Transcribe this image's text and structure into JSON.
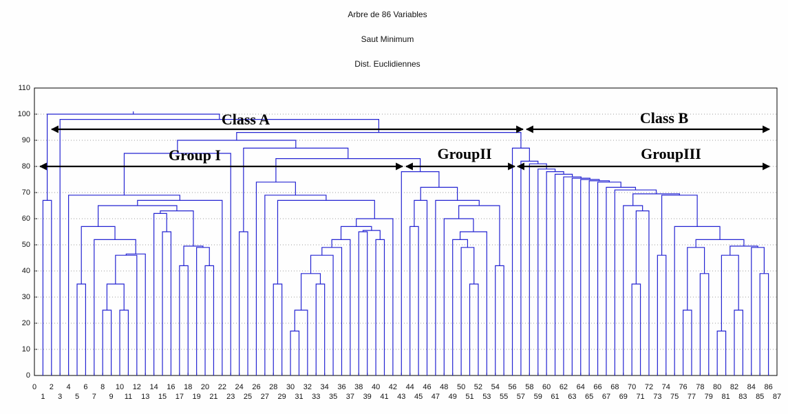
{
  "chart_data": {
    "type": "dendrogram",
    "title": "Arbre de 86 Variables",
    "subtitle": [
      "Saut Minimum",
      "Dist. Euclidiennes"
    ],
    "color": "#2323d2",
    "grid": true,
    "xlim": [
      0,
      87
    ],
    "xticks": [
      0,
      1,
      2,
      3,
      4,
      5,
      6,
      7,
      8,
      9,
      10,
      11,
      12,
      13,
      14,
      15,
      16,
      17,
      18,
      19,
      20,
      21,
      22,
      23,
      24,
      25,
      26,
      27,
      28,
      29,
      30,
      31,
      32,
      33,
      34,
      35,
      36,
      37,
      38,
      39,
      40,
      41,
      42,
      43,
      44,
      45,
      46,
      47,
      48,
      49,
      50,
      51,
      52,
      53,
      54,
      55,
      56,
      57,
      58,
      59,
      60,
      61,
      62,
      63,
      64,
      65,
      66,
      67,
      68,
      69,
      70,
      71,
      72,
      73,
      74,
      75,
      76,
      77,
      78,
      79,
      80,
      81,
      82,
      83,
      84,
      85,
      86,
      87
    ],
    "ylim": [
      0,
      110
    ],
    "yticks": [
      0,
      10,
      20,
      30,
      40,
      50,
      60,
      70,
      80,
      90,
      100,
      110
    ],
    "leaves": [
      1,
      2,
      3,
      4,
      5,
      6,
      7,
      8,
      9,
      10,
      11,
      12,
      13,
      14,
      15,
      16,
      17,
      18,
      19,
      20,
      21,
      22,
      23,
      24,
      25,
      26,
      27,
      28,
      29,
      30,
      31,
      32,
      33,
      34,
      35,
      36,
      37,
      38,
      39,
      40,
      41,
      42,
      43,
      44,
      45,
      46,
      47,
      48,
      49,
      50,
      51,
      52,
      53,
      54,
      55,
      56,
      57,
      58,
      59,
      60,
      61,
      62,
      63,
      64,
      65,
      66,
      67,
      68,
      69,
      70,
      71,
      72,
      73,
      74,
      75,
      76,
      77,
      78,
      79,
      80,
      81,
      82,
      83,
      84,
      85,
      86
    ],
    "merges": [
      [
        0,
        1,
        67
      ],
      [
        4,
        5,
        35
      ],
      [
        7,
        8,
        25
      ],
      [
        9,
        10,
        25
      ],
      [
        88,
        89,
        35
      ],
      [
        90,
        11,
        46
      ],
      [
        91,
        12,
        46.5
      ],
      [
        6,
        92,
        52
      ],
      [
        87,
        93,
        57
      ],
      [
        14,
        15,
        55
      ],
      [
        13,
        95,
        62
      ],
      [
        16,
        17,
        42
      ],
      [
        19,
        20,
        42
      ],
      [
        18,
        98,
        49
      ],
      [
        97,
        99,
        49.5
      ],
      [
        96,
        100,
        63
      ],
      [
        94,
        101,
        65
      ],
      [
        102,
        21,
        67
      ],
      [
        3,
        103,
        69
      ],
      [
        23,
        24,
        55
      ],
      [
        27,
        28,
        35
      ],
      [
        29,
        30,
        17
      ],
      [
        107,
        31,
        25
      ],
      [
        32,
        33,
        35
      ],
      [
        108,
        109,
        39
      ],
      [
        110,
        34,
        46
      ],
      [
        111,
        35,
        49
      ],
      [
        112,
        36,
        52
      ],
      [
        37,
        38,
        55
      ],
      [
        39,
        40,
        52
      ],
      [
        114,
        115,
        55.5
      ],
      [
        113,
        116,
        57
      ],
      [
        117,
        41,
        60
      ],
      [
        106,
        118,
        67
      ],
      [
        26,
        119,
        69
      ],
      [
        25,
        120,
        74
      ],
      [
        43,
        44,
        57
      ],
      [
        122,
        45,
        67
      ],
      [
        50,
        51,
        35
      ],
      [
        49,
        124,
        49
      ],
      [
        48,
        125,
        52
      ],
      [
        52,
        126,
        55
      ],
      [
        47,
        127,
        60
      ],
      [
        53,
        54,
        42
      ],
      [
        128,
        129,
        65
      ],
      [
        46,
        130,
        67
      ],
      [
        123,
        131,
        72
      ],
      [
        42,
        132,
        78
      ],
      [
        121,
        133,
        83
      ],
      [
        105,
        134,
        87
      ],
      [
        104,
        22,
        85
      ],
      [
        136,
        135,
        90
      ],
      [
        75,
        76,
        25
      ],
      [
        77,
        78,
        39
      ],
      [
        138,
        139,
        49
      ],
      [
        79,
        80,
        17
      ],
      [
        81,
        82,
        25
      ],
      [
        141,
        142,
        46
      ],
      [
        84,
        85,
        39
      ],
      [
        83,
        144,
        49
      ],
      [
        143,
        145,
        49.5
      ],
      [
        140,
        146,
        52
      ],
      [
        74,
        147,
        57
      ],
      [
        69,
        70,
        35
      ],
      [
        149,
        71,
        63
      ],
      [
        68,
        150,
        65
      ],
      [
        72,
        73,
        46
      ],
      [
        152,
        148,
        69
      ],
      [
        151,
        153,
        69.5
      ],
      [
        67,
        154,
        71
      ],
      [
        66,
        155,
        72
      ],
      [
        65,
        156,
        74
      ],
      [
        64,
        157,
        74.5
      ],
      [
        63,
        158,
        75
      ],
      [
        62,
        159,
        75.5
      ],
      [
        61,
        160,
        76
      ],
      [
        60,
        161,
        77
      ],
      [
        59,
        162,
        78
      ],
      [
        58,
        163,
        79
      ],
      [
        57,
        164,
        81
      ],
      [
        56,
        165,
        82
      ],
      [
        55,
        166,
        87
      ],
      [
        137,
        167,
        93
      ],
      [
        2,
        168,
        98
      ],
      [
        86,
        169,
        100
      ]
    ],
    "annotations": [
      "Class A",
      "Class B",
      "Group I",
      "GroupII",
      "GroupIII"
    ]
  }
}
